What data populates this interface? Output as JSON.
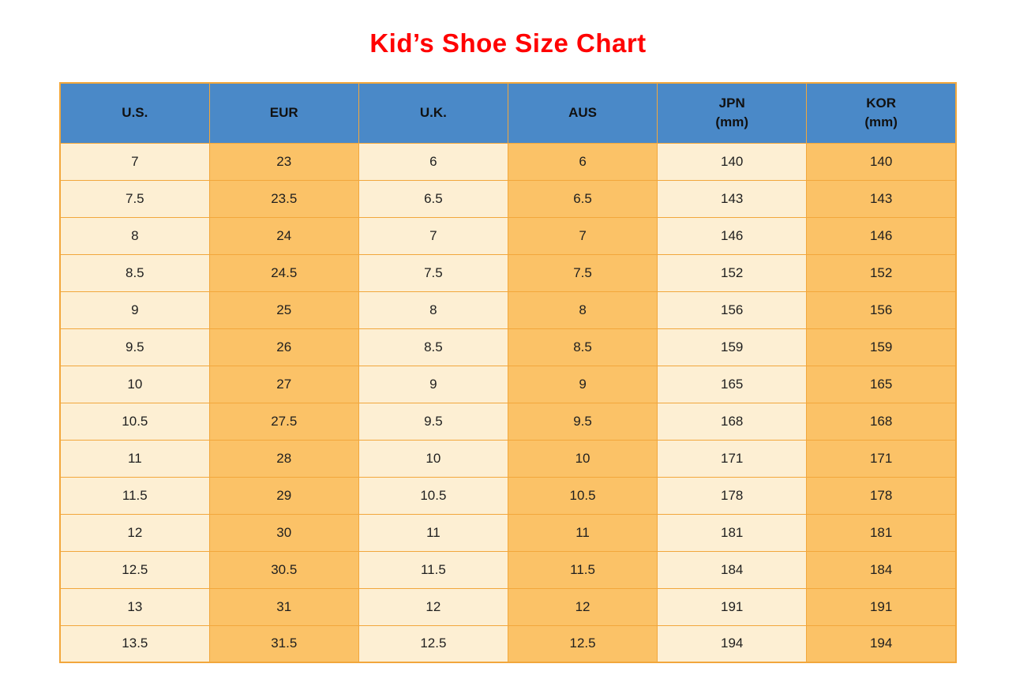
{
  "title": "Kid’s Shoe Size Chart",
  "colors": {
    "title_red": "#ff0000",
    "header_blue": "#4a89c8",
    "cell_light": "#fdefd3",
    "cell_orange": "#fbc267",
    "grid_border": "#f2a73c",
    "text": "#1f1f1f"
  },
  "chart_data": {
    "type": "table",
    "title": "Kid’s Shoe Size Chart",
    "columns": [
      {
        "id": "us",
        "lines": [
          "U.S."
        ]
      },
      {
        "id": "eur",
        "lines": [
          "EUR"
        ]
      },
      {
        "id": "uk",
        "lines": [
          "U.K."
        ]
      },
      {
        "id": "aus",
        "lines": [
          "AUS"
        ]
      },
      {
        "id": "jpn",
        "lines": [
          "JPN",
          "(mm)"
        ]
      },
      {
        "id": "kor",
        "lines": [
          "KOR",
          "(mm)"
        ]
      }
    ],
    "rows": [
      [
        "7",
        "23",
        "6",
        "6",
        "140",
        "140"
      ],
      [
        "7.5",
        "23.5",
        "6.5",
        "6.5",
        "143",
        "143"
      ],
      [
        "8",
        "24",
        "7",
        "7",
        "146",
        "146"
      ],
      [
        "8.5",
        "24.5",
        "7.5",
        "7.5",
        "152",
        "152"
      ],
      [
        "9",
        "25",
        "8",
        "8",
        "156",
        "156"
      ],
      [
        "9.5",
        "26",
        "8.5",
        "8.5",
        "159",
        "159"
      ],
      [
        "10",
        "27",
        "9",
        "9",
        "165",
        "165"
      ],
      [
        "10.5",
        "27.5",
        "9.5",
        "9.5",
        "168",
        "168"
      ],
      [
        "11",
        "28",
        "10",
        "10",
        "171",
        "171"
      ],
      [
        "11.5",
        "29",
        "10.5",
        "10.5",
        "178",
        "178"
      ],
      [
        "12",
        "30",
        "11",
        "11",
        "181",
        "181"
      ],
      [
        "12.5",
        "30.5",
        "11.5",
        "11.5",
        "184",
        "184"
      ],
      [
        "13",
        "31",
        "12",
        "12",
        "191",
        "191"
      ],
      [
        "13.5",
        "31.5",
        "12.5",
        "12.5",
        "194",
        "194"
      ]
    ],
    "layout": {
      "grid": true,
      "column_fill_pattern": [
        "light",
        "orange",
        "light",
        "orange",
        "light",
        "orange"
      ]
    }
  }
}
